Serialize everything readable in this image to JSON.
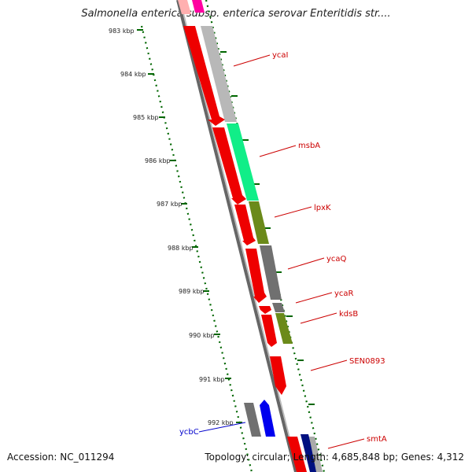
{
  "title": "Salmonella enterica subsp. enterica serovar Enteritidis str....",
  "footer": {
    "accession": "Accession: NC_011294",
    "topology": "Topology: circular; Length: 4,685,848 bp; Genes: 4,312"
  },
  "colors": {
    "forward_strand": "#ee0000",
    "reverse_label": "#cc0000",
    "ycbC_label": "#0000cc",
    "tick_green": "#006600"
  },
  "kbp_ticks": [
    {
      "label": "983 kbp",
      "value": 983
    },
    {
      "label": "984 kbp",
      "value": 984
    },
    {
      "label": "985 kbp",
      "value": 985
    },
    {
      "label": "986 kbp",
      "value": 986
    },
    {
      "label": "987 kbp",
      "value": 987
    },
    {
      "label": "988 kbp",
      "value": 988
    },
    {
      "label": "989 kbp",
      "value": 989
    },
    {
      "label": "990 kbp",
      "value": 990
    },
    {
      "label": "991 kbp",
      "value": 991
    },
    {
      "label": "992 kbp",
      "value": 992
    }
  ],
  "gene_labels": [
    {
      "name": "ycaI",
      "color": "#cc0000"
    },
    {
      "name": "msbA",
      "color": "#cc0000"
    },
    {
      "name": "lpxK",
      "color": "#cc0000"
    },
    {
      "name": "ycaQ",
      "color": "#cc0000"
    },
    {
      "name": "ycaR",
      "color": "#cc0000"
    },
    {
      "name": "kdsB",
      "color": "#cc0000"
    },
    {
      "name": "SEN0893",
      "color": "#cc0000"
    },
    {
      "name": "smtA",
      "color": "#cc0000"
    },
    {
      "name": "ycbC",
      "color": "#0000cc"
    }
  ]
}
